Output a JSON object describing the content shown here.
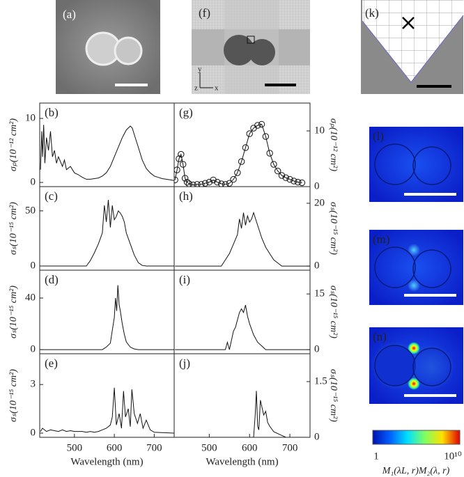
{
  "chart_data": [
    {
      "type": "line",
      "label": "(b)",
      "ylabel": "σₚ(10⁻¹² cm²)",
      "xlim": [
        413,
        750
      ],
      "ylim": [
        -0.65,
        12.4
      ],
      "yticks": [
        0,
        10
      ],
      "color": "#111",
      "x": [
        415,
        418,
        420,
        423,
        426,
        430,
        435,
        440,
        445,
        450,
        455,
        460,
        470,
        475,
        480,
        490,
        500,
        510,
        520,
        530,
        540,
        550,
        560,
        570,
        580,
        590,
        600,
        610,
        620,
        630,
        640,
        645,
        650,
        660,
        670,
        680,
        690,
        700,
        710,
        720,
        730,
        740,
        750
      ],
      "values": [
        2,
        8,
        4,
        9,
        3,
        7,
        5,
        8,
        4,
        5,
        3,
        4,
        2.5,
        3.5,
        2,
        2.5,
        1.5,
        1.2,
        0.8,
        0.5,
        0.5,
        0.6,
        0.7,
        1,
        1.5,
        2.5,
        4,
        5.5,
        7,
        8.2,
        8.8,
        8.5,
        7.5,
        5.5,
        3.5,
        2.2,
        1.5,
        1,
        0.8,
        0.6,
        0.5,
        0.4,
        0.3
      ]
    },
    {
      "type": "line",
      "label": "(c)",
      "ylabel": "σₛ(10⁻¹⁵ cm²)",
      "xlim": [
        413,
        750
      ],
      "ylim": [
        -3.8,
        72
      ],
      "yticks": [
        0,
        50
      ],
      "color": "#111",
      "x": [
        415,
        530,
        540,
        550,
        560,
        570,
        575,
        580,
        585,
        590,
        595,
        600,
        605,
        610,
        615,
        620,
        625,
        630,
        640,
        650,
        660,
        670,
        680,
        750
      ],
      "values": [
        0,
        0,
        5,
        12,
        20,
        30,
        55,
        40,
        60,
        35,
        55,
        42,
        45,
        50,
        48,
        45,
        40,
        30,
        20,
        10,
        3,
        0.5,
        0,
        0
      ]
    },
    {
      "type": "line",
      "label": "(d)",
      "ylabel": "σₛ(10⁻¹⁵ cm²)",
      "xlim": [
        413,
        750
      ],
      "ylim": [
        -3.2,
        61.6
      ],
      "yticks": [
        0,
        40
      ],
      "color": "#111",
      "x": [
        415,
        570,
        580,
        590,
        595,
        600,
        603,
        606,
        609,
        612,
        615,
        620,
        625,
        630,
        640,
        650,
        660,
        750
      ],
      "values": [
        0,
        0,
        2,
        5,
        15,
        25,
        40,
        30,
        50,
        35,
        30,
        20,
        12,
        6,
        2,
        0.5,
        0,
        0
      ]
    },
    {
      "type": "line",
      "label": "(e)",
      "ylabel": "σₛ(10⁻¹⁵ cm²)",
      "xlabel": "Wavelength (nm)",
      "xlim": [
        413,
        750
      ],
      "xticks": [
        500,
        600,
        700
      ],
      "ylim": [
        -0.26,
        4.9
      ],
      "yticks": [
        0,
        3
      ],
      "color": "#111",
      "x": [
        415,
        420,
        430,
        440,
        450,
        460,
        470,
        480,
        490,
        500,
        510,
        520,
        530,
        540,
        550,
        560,
        570,
        580,
        590,
        595,
        600,
        605,
        612,
        618,
        623,
        628,
        635,
        640,
        644,
        650,
        658,
        665,
        672,
        680,
        690,
        700,
        750
      ],
      "values": [
        0.1,
        0.3,
        0.1,
        0.2,
        0.15,
        0.1,
        0.2,
        0.1,
        0.15,
        0.1,
        0.1,
        0.1,
        0.05,
        0.1,
        0.05,
        0.1,
        0.2,
        0.3,
        0.5,
        1,
        2.8,
        0.5,
        1.2,
        0.3,
        2.6,
        1,
        1.5,
        0.4,
        2.7,
        1.2,
        0.6,
        1.2,
        0.3,
        0.8,
        0.2,
        0.05,
        0
      ]
    },
    {
      "type": "line",
      "label": "(g)",
      "ylabel": "σₚ(10⁻¹² cm²)",
      "xlim": [
        413,
        750
      ],
      "ylim": [
        0,
        15
      ],
      "yticks": [
        0,
        10
      ],
      "color": "#111",
      "marker": "circle",
      "x": [
        415,
        420,
        425,
        430,
        435,
        440,
        445,
        450,
        460,
        470,
        480,
        490,
        500,
        510,
        520,
        530,
        540,
        550,
        560,
        570,
        580,
        590,
        600,
        610,
        620,
        630,
        640,
        650,
        660,
        670,
        680,
        690,
        700,
        710,
        720,
        730
      ],
      "values": [
        1.2,
        3,
        5,
        5.8,
        4,
        1.5,
        0.8,
        0.5,
        0.3,
        0.4,
        0.4,
        0.6,
        0.8,
        1.2,
        0.8,
        0.5,
        0.4,
        0.6,
        1.3,
        2.5,
        4.5,
        7,
        9.5,
        10.5,
        11,
        11.2,
        9,
        6,
        4,
        2.8,
        2,
        1.6,
        1.3,
        1,
        0.8,
        0.7
      ]
    },
    {
      "type": "line",
      "label": "(h)",
      "ylabel": "σₛ(10⁻¹⁵ cm²)",
      "xlim": [
        413,
        750
      ],
      "ylim": [
        -1.3,
        25.3
      ],
      "yticks": [
        0,
        20
      ],
      "color": "#111",
      "x": [
        415,
        530,
        540,
        550,
        560,
        570,
        575,
        580,
        585,
        590,
        595,
        600,
        605,
        610,
        615,
        620,
        630,
        640,
        650,
        660,
        670,
        680,
        750
      ],
      "values": [
        0,
        0,
        2,
        4,
        7,
        10,
        15,
        12,
        17,
        13,
        16,
        14,
        15,
        17,
        15,
        13,
        9,
        6,
        4,
        2,
        1,
        0,
        0
      ]
    },
    {
      "type": "line",
      "label": "(i)",
      "ylabel": "σₛ(10⁻¹⁵ cm²)",
      "xlim": [
        413,
        750
      ],
      "ylim": [
        -1.1,
        21.4
      ],
      "yticks": [
        0,
        15
      ],
      "color": "#111",
      "x": [
        415,
        540,
        545,
        550,
        560,
        565,
        570,
        575,
        580,
        585,
        590,
        595,
        600,
        610,
        620,
        630,
        640,
        750
      ],
      "values": [
        0,
        0,
        2,
        0,
        5,
        6,
        8,
        10,
        11,
        10,
        12,
        9,
        7,
        4,
        2,
        1,
        0,
        0
      ]
    },
    {
      "type": "line",
      "label": "(j)",
      "ylabel": "σₛ(10⁻¹⁵ cm²)",
      "xlabel": "Wavelength (nm)",
      "xlim": [
        413,
        750
      ],
      "xticks": [
        500,
        600,
        700
      ],
      "ylim": [
        0,
        2.25
      ],
      "yticks": [
        0,
        1.5
      ],
      "color": "#111",
      "x": [
        415,
        610,
        614,
        617,
        620,
        623,
        627,
        631,
        635,
        640,
        645,
        650,
        660,
        670,
        680,
        690,
        750
      ],
      "values": [
        0,
        0,
        0.6,
        1.25,
        0.3,
        0.2,
        1,
        0.8,
        0.6,
        0.7,
        0.4,
        0.3,
        0.15,
        0.1,
        0.05,
        0,
        0
      ]
    }
  ],
  "image_labels": {
    "a": "(a)",
    "f": "(f)",
    "k": "(k)",
    "l": "(l)",
    "m": "(m)",
    "n": "(n)"
  },
  "schematic_axes": {
    "y": "y",
    "z": "z",
    "x": "x"
  },
  "colorbar": {
    "lim": [
      1,
      10000000000
    ],
    "ticks": [
      1,
      {
        "value": 10000000000,
        "label": "10¹⁰"
      }
    ],
    "label": "M₁(λL, r)M₂(λ, r)"
  }
}
